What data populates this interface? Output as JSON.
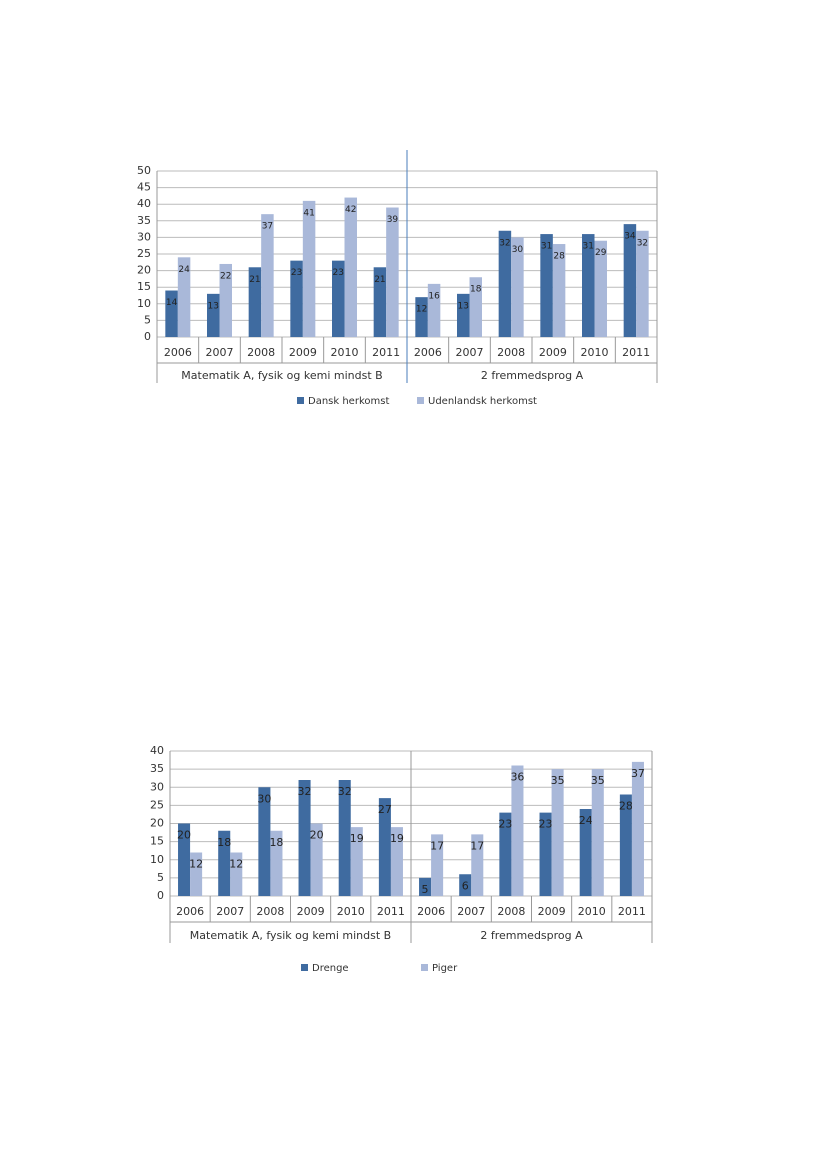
{
  "chart_data": [
    {
      "type": "bar",
      "groups": [
        "Matematik A, fysik og kemi mindst B",
        "2 fremmedsprog A"
      ],
      "categories": [
        "2006",
        "2007",
        "2008",
        "2009",
        "2010",
        "2011",
        "2006",
        "2007",
        "2008",
        "2009",
        "2010",
        "2011"
      ],
      "series": [
        {
          "name": "Dansk herkomst",
          "color": "#3f6ba0",
          "values": [
            14,
            13,
            21,
            23,
            23,
            21,
            12,
            13,
            32,
            31,
            31,
            34
          ]
        },
        {
          "name": "Udenlandsk herkomst",
          "color": "#a9b8d9",
          "values": [
            24,
            22,
            37,
            41,
            42,
            39,
            16,
            18,
            30,
            28,
            29,
            32
          ]
        }
      ],
      "ylim": [
        0,
        50
      ],
      "yticks": [
        0,
        5,
        10,
        15,
        20,
        25,
        30,
        35,
        40,
        45,
        50
      ],
      "grid": true,
      "legend": "bottom"
    },
    {
      "type": "bar",
      "groups": [
        "Matematik A, fysik og kemi mindst B",
        "2 fremmedsprog A"
      ],
      "categories": [
        "2006",
        "2007",
        "2008",
        "2009",
        "2010",
        "2011",
        "2006",
        "2007",
        "2008",
        "2009",
        "2010",
        "2011"
      ],
      "series": [
        {
          "name": "Drenge",
          "color": "#3f6ba0",
          "values": [
            20,
            18,
            30,
            32,
            32,
            27,
            5,
            6,
            23,
            23,
            24,
            28
          ]
        },
        {
          "name": "Piger",
          "color": "#a9b8d9",
          "values": [
            12,
            12,
            18,
            20,
            19,
            19,
            17,
            17,
            36,
            35,
            35,
            37
          ]
        }
      ],
      "ylim": [
        0,
        40
      ],
      "yticks": [
        0,
        5,
        10,
        15,
        20,
        25,
        30,
        35,
        40
      ],
      "grid": true,
      "legend": "bottom"
    }
  ]
}
